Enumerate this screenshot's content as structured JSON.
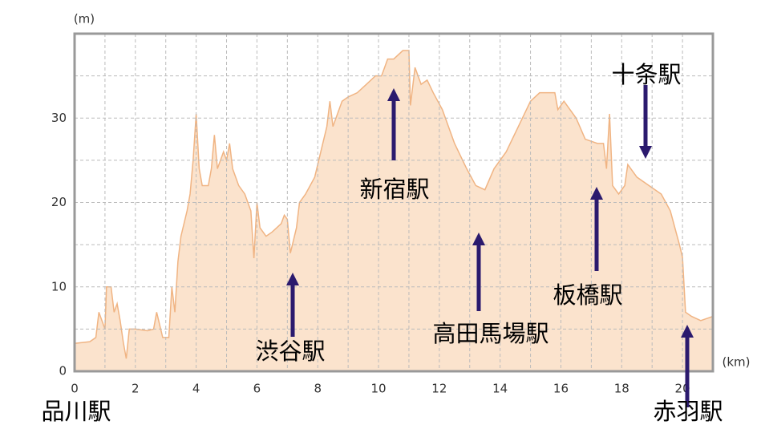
{
  "chart_data": {
    "type": "area",
    "y_unit": "(m)",
    "x_unit": "(km)",
    "x": [
      0,
      0.5,
      0.7,
      0.8,
      1.0,
      1.05,
      1.2,
      1.3,
      1.4,
      1.5,
      1.6,
      1.7,
      1.8,
      2.0,
      2.4,
      2.6,
      2.7,
      2.9,
      3.1,
      3.2,
      3.3,
      3.4,
      3.5,
      3.7,
      3.8,
      3.9,
      4.0,
      4.1,
      4.2,
      4.4,
      4.5,
      4.6,
      4.7,
      4.9,
      5.0,
      5.1,
      5.2,
      5.4,
      5.6,
      5.8,
      5.9,
      6.0,
      6.1,
      6.3,
      6.5,
      6.8,
      6.9,
      7.0,
      7.1,
      7.3,
      7.4,
      7.6,
      7.9,
      8.1,
      8.3,
      8.4,
      8.5,
      8.8,
      9.0,
      9.3,
      9.6,
      9.9,
      10.1,
      10.3,
      10.5,
      10.8,
      11.0,
      11.05,
      11.2,
      11.4,
      11.6,
      11.8,
      12.1,
      12.5,
      12.9,
      13.2,
      13.5,
      13.8,
      14.2,
      14.6,
      15.0,
      15.3,
      15.6,
      15.8,
      15.9,
      16.1,
      16.5,
      16.8,
      17.2,
      17.4,
      17.5,
      17.6,
      17.7,
      17.9,
      18.1,
      18.2,
      18.5,
      18.9,
      19.3,
      19.6,
      19.9,
      20.0,
      20.1,
      20.3,
      20.6,
      21.0
    ],
    "series": [
      {
        "name": "elevation",
        "color": "#f0b483",
        "fill": "#fbe3cd",
        "values": [
          3.3,
          3.5,
          4,
          7,
          5,
          10,
          10,
          7,
          8,
          6,
          3.5,
          1.5,
          5,
          5,
          4.8,
          5,
          7,
          4,
          4,
          10,
          7,
          13,
          16,
          19,
          21,
          25,
          30.5,
          24,
          22,
          22,
          24,
          28,
          24,
          26,
          25,
          27,
          24,
          22,
          21,
          19,
          13.4,
          20,
          17,
          16,
          16.5,
          17.5,
          18.5,
          18,
          14,
          17,
          20,
          21,
          23,
          26,
          29,
          32,
          29,
          32,
          32.5,
          33,
          34,
          35,
          35,
          37,
          37,
          38,
          38,
          31.5,
          36,
          34,
          34.5,
          33,
          31,
          27,
          24,
          22,
          21.5,
          24,
          26,
          29,
          32,
          33,
          33,
          33,
          31,
          32,
          30,
          27.5,
          27,
          27,
          24,
          30.5,
          22,
          21,
          22,
          24.5,
          23,
          22,
          21,
          19,
          15,
          13.5,
          7,
          6.5,
          6,
          6.5
        ]
      }
    ],
    "xlim": [
      0,
      21
    ],
    "ylim": [
      0,
      40
    ],
    "xticks": [
      0,
      2,
      4,
      6,
      8,
      10,
      12,
      14,
      16,
      18,
      20
    ],
    "yticks": [
      0,
      10,
      20,
      30
    ],
    "minor_xticks": [
      1,
      3,
      5,
      7,
      9,
      11,
      13,
      15,
      17,
      19
    ],
    "minor_yticks": [
      5,
      15,
      25,
      35
    ],
    "grid": true,
    "annotations": [
      "品川駅",
      "渋谷駅",
      "新宿駅",
      "高田馬場駅",
      "板橋駅",
      "十条駅",
      "赤羽駅"
    ]
  }
}
